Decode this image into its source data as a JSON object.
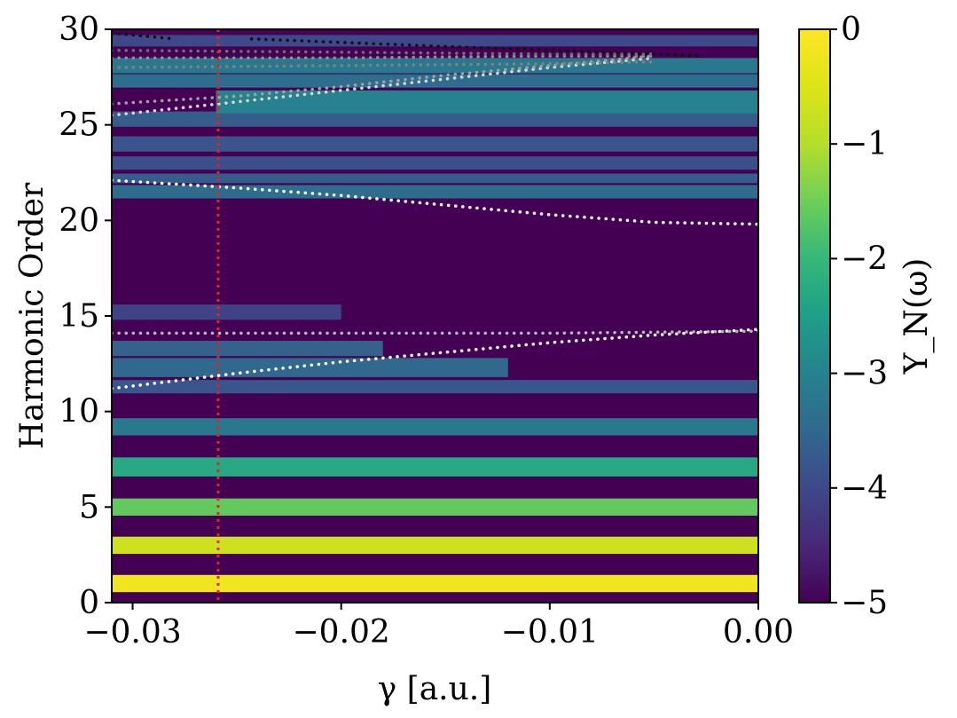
{
  "chart_data": {
    "type": "heatmap",
    "title": "",
    "xlabel": "γ [a.u.]",
    "ylabel": "Harmonic Order",
    "colorbar_label": "Y_N(ω)",
    "xlim": [
      -0.031,
      0.0
    ],
    "ylim": [
      0,
      30
    ],
    "clim": [
      -5,
      0
    ],
    "colormap": "viridis",
    "x_ticks": [
      -0.03,
      -0.02,
      -0.01,
      0.0
    ],
    "x_tick_labels": [
      "−0.03",
      "−0.02",
      "−0.01",
      "0.00"
    ],
    "y_ticks": [
      0,
      5,
      10,
      15,
      20,
      25,
      30
    ],
    "y_tick_labels": [
      "0",
      "5",
      "10",
      "15",
      "20",
      "25",
      "30"
    ],
    "colorbar_ticks": [
      0,
      -1,
      -2,
      -3,
      -4,
      -5
    ],
    "colorbar_tick_labels": [
      "0",
      "−1",
      "−2",
      "−3",
      "−4",
      "−5"
    ],
    "bands": [
      {
        "center": 1.0,
        "width": 0.45,
        "value": -0.2
      },
      {
        "center": 3.0,
        "width": 0.45,
        "value": -0.7
      },
      {
        "center": 5.0,
        "width": 0.45,
        "value": -1.6
      },
      {
        "center": 7.1,
        "width": 0.5,
        "value": -2.3
      },
      {
        "center": 9.2,
        "width": 0.45,
        "value": -3.2
      },
      {
        "center": 11.3,
        "width": 0.35,
        "value": -3.8
      },
      {
        "center": 12.3,
        "width": 0.5,
        "value": -3.5,
        "x_to": -0.012
      },
      {
        "center": 13.3,
        "width": 0.4,
        "value": -3.6,
        "x_to": -0.018
      },
      {
        "center": 15.2,
        "width": 0.4,
        "value": -4.1,
        "x_to": -0.02
      },
      {
        "center": 21.5,
        "width": 0.35,
        "value": -3.4
      },
      {
        "center": 22.2,
        "width": 0.25,
        "value": -3.7
      },
      {
        "center": 23.0,
        "width": 0.35,
        "value": -3.9
      },
      {
        "center": 24.0,
        "width": 0.4,
        "value": -3.8
      },
      {
        "center": 25.3,
        "width": 0.4,
        "value": -3.7
      },
      {
        "center": 26.2,
        "width": 0.6,
        "value": -3.0,
        "x_from": -0.026
      },
      {
        "center": 27.3,
        "width": 0.35,
        "value": -3.4
      },
      {
        "center": 28.1,
        "width": 0.4,
        "value": -3.2
      },
      {
        "center": 29.4,
        "width": 0.3,
        "value": -4.0
      }
    ],
    "marker_line": {
      "x": -0.0259,
      "color": "#e8221a",
      "style": "dotted"
    },
    "series": [
      {
        "x": [
          -0.031,
          -0.025,
          -0.02,
          -0.015,
          -0.01,
          -0.005,
          0.0
        ],
        "y": [
          22.1,
          21.7,
          21.3,
          20.8,
          20.3,
          19.9,
          19.8
        ],
        "color": "#ffffff"
      },
      {
        "x": [
          -0.031,
          -0.025,
          -0.02,
          -0.015,
          -0.01,
          -0.005,
          0.0
        ],
        "y": [
          11.2,
          12.0,
          12.6,
          13.1,
          13.6,
          14.0,
          14.3
        ],
        "color": "#ffffff"
      },
      {
        "x": [
          -0.031,
          -0.02,
          -0.01,
          0.0
        ],
        "y": [
          14.1,
          14.1,
          14.1,
          14.2
        ],
        "color": "#b8b8b8"
      },
      {
        "x": [
          -0.031,
          -0.025,
          -0.02,
          -0.015,
          -0.01,
          -0.005
        ],
        "y": [
          25.5,
          26.2,
          26.8,
          27.4,
          28.0,
          28.5
        ],
        "color": "#d8d8d8"
      },
      {
        "x": [
          -0.031,
          -0.025,
          -0.02,
          -0.015,
          -0.01,
          -0.005
        ],
        "y": [
          26.1,
          26.5,
          27.0,
          27.6,
          28.1,
          28.6
        ],
        "color": "#a0a0a0"
      },
      {
        "x": [
          -0.031,
          -0.02,
          -0.01,
          -0.005
        ],
        "y": [
          28.0,
          28.1,
          28.2,
          28.3
        ],
        "color": "#808080"
      },
      {
        "x": [
          -0.031,
          -0.02,
          -0.01,
          -0.005
        ],
        "y": [
          28.5,
          28.5,
          28.6,
          28.6
        ],
        "color": "#909090"
      },
      {
        "x": [
          -0.031,
          -0.02,
          -0.01,
          -0.005
        ],
        "y": [
          28.9,
          28.8,
          28.7,
          28.7
        ],
        "color": "#707070"
      },
      {
        "x": [
          -0.0243,
          -0.015,
          -0.005,
          -0.0027
        ],
        "y": [
          29.5,
          29.1,
          28.7,
          28.6
        ],
        "color": "#111111"
      },
      {
        "x": [
          -0.031,
          -0.028
        ],
        "y": [
          29.8,
          29.5
        ],
        "color": "#111111"
      }
    ]
  }
}
